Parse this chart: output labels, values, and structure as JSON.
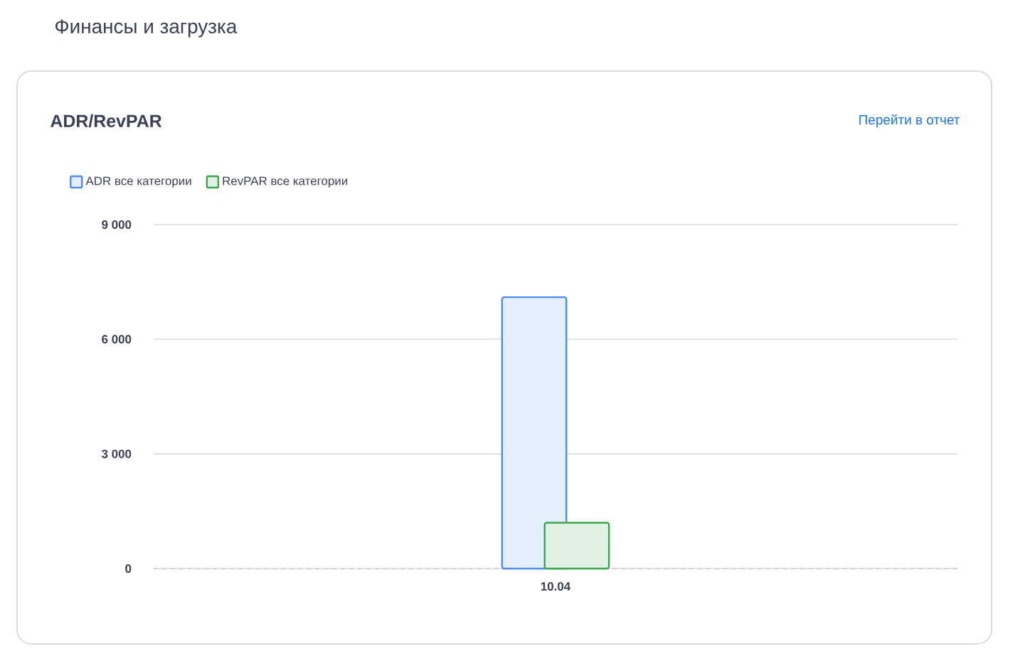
{
  "chart_data": {
    "type": "bar",
    "title": "Финансы и загрузка",
    "subtitle": "ADR/RevPAR",
    "annotations": [
      "Перейти в отчет"
    ],
    "categories": [
      "10.04"
    ],
    "series": [
      {
        "name": "ADR все категории",
        "color": "#4a8cf0",
        "values": [
          7100
        ]
      },
      {
        "name": "RevPAR все категории",
        "color": "#3aa64c",
        "values": [
          1200
        ]
      }
    ],
    "ylim": [
      0,
      9000
    ],
    "yticks": [
      0,
      {
        "value": 3000,
        "label": "3 000"
      },
      {
        "value": 6000,
        "label": "6 000"
      },
      {
        "value": 9000,
        "label": "9 000"
      }
    ],
    "grid": "y",
    "legend": "top left"
  }
}
